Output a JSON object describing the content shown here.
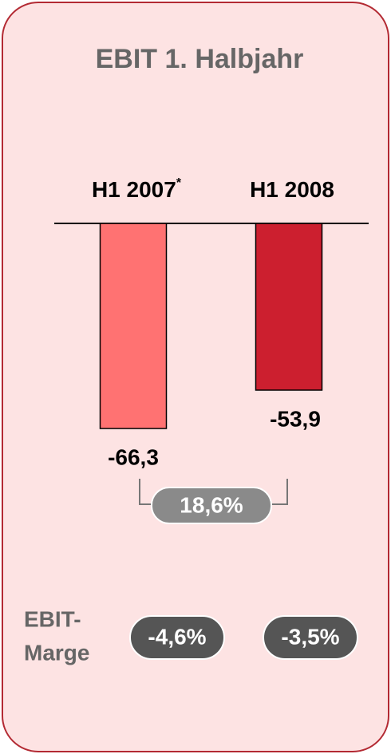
{
  "chart_data": {
    "type": "bar",
    "title": "EBIT 1. Halbjahr",
    "categories": [
      "H1 2007",
      "H1 2008"
    ],
    "footnote_marker": "*",
    "values": [
      -66.3,
      -53.9
    ],
    "value_labels": [
      "-66,3",
      "-53,9"
    ],
    "colors": [
      "#ff7272",
      "#cc1f2f"
    ],
    "change": {
      "value": 18.6,
      "label": "18,6%"
    },
    "margin_label": [
      "EBIT-",
      "Marge"
    ],
    "margins": [
      -4.6,
      -3.5
    ],
    "margin_labels": [
      "-4,6%",
      "-3,5%"
    ]
  }
}
